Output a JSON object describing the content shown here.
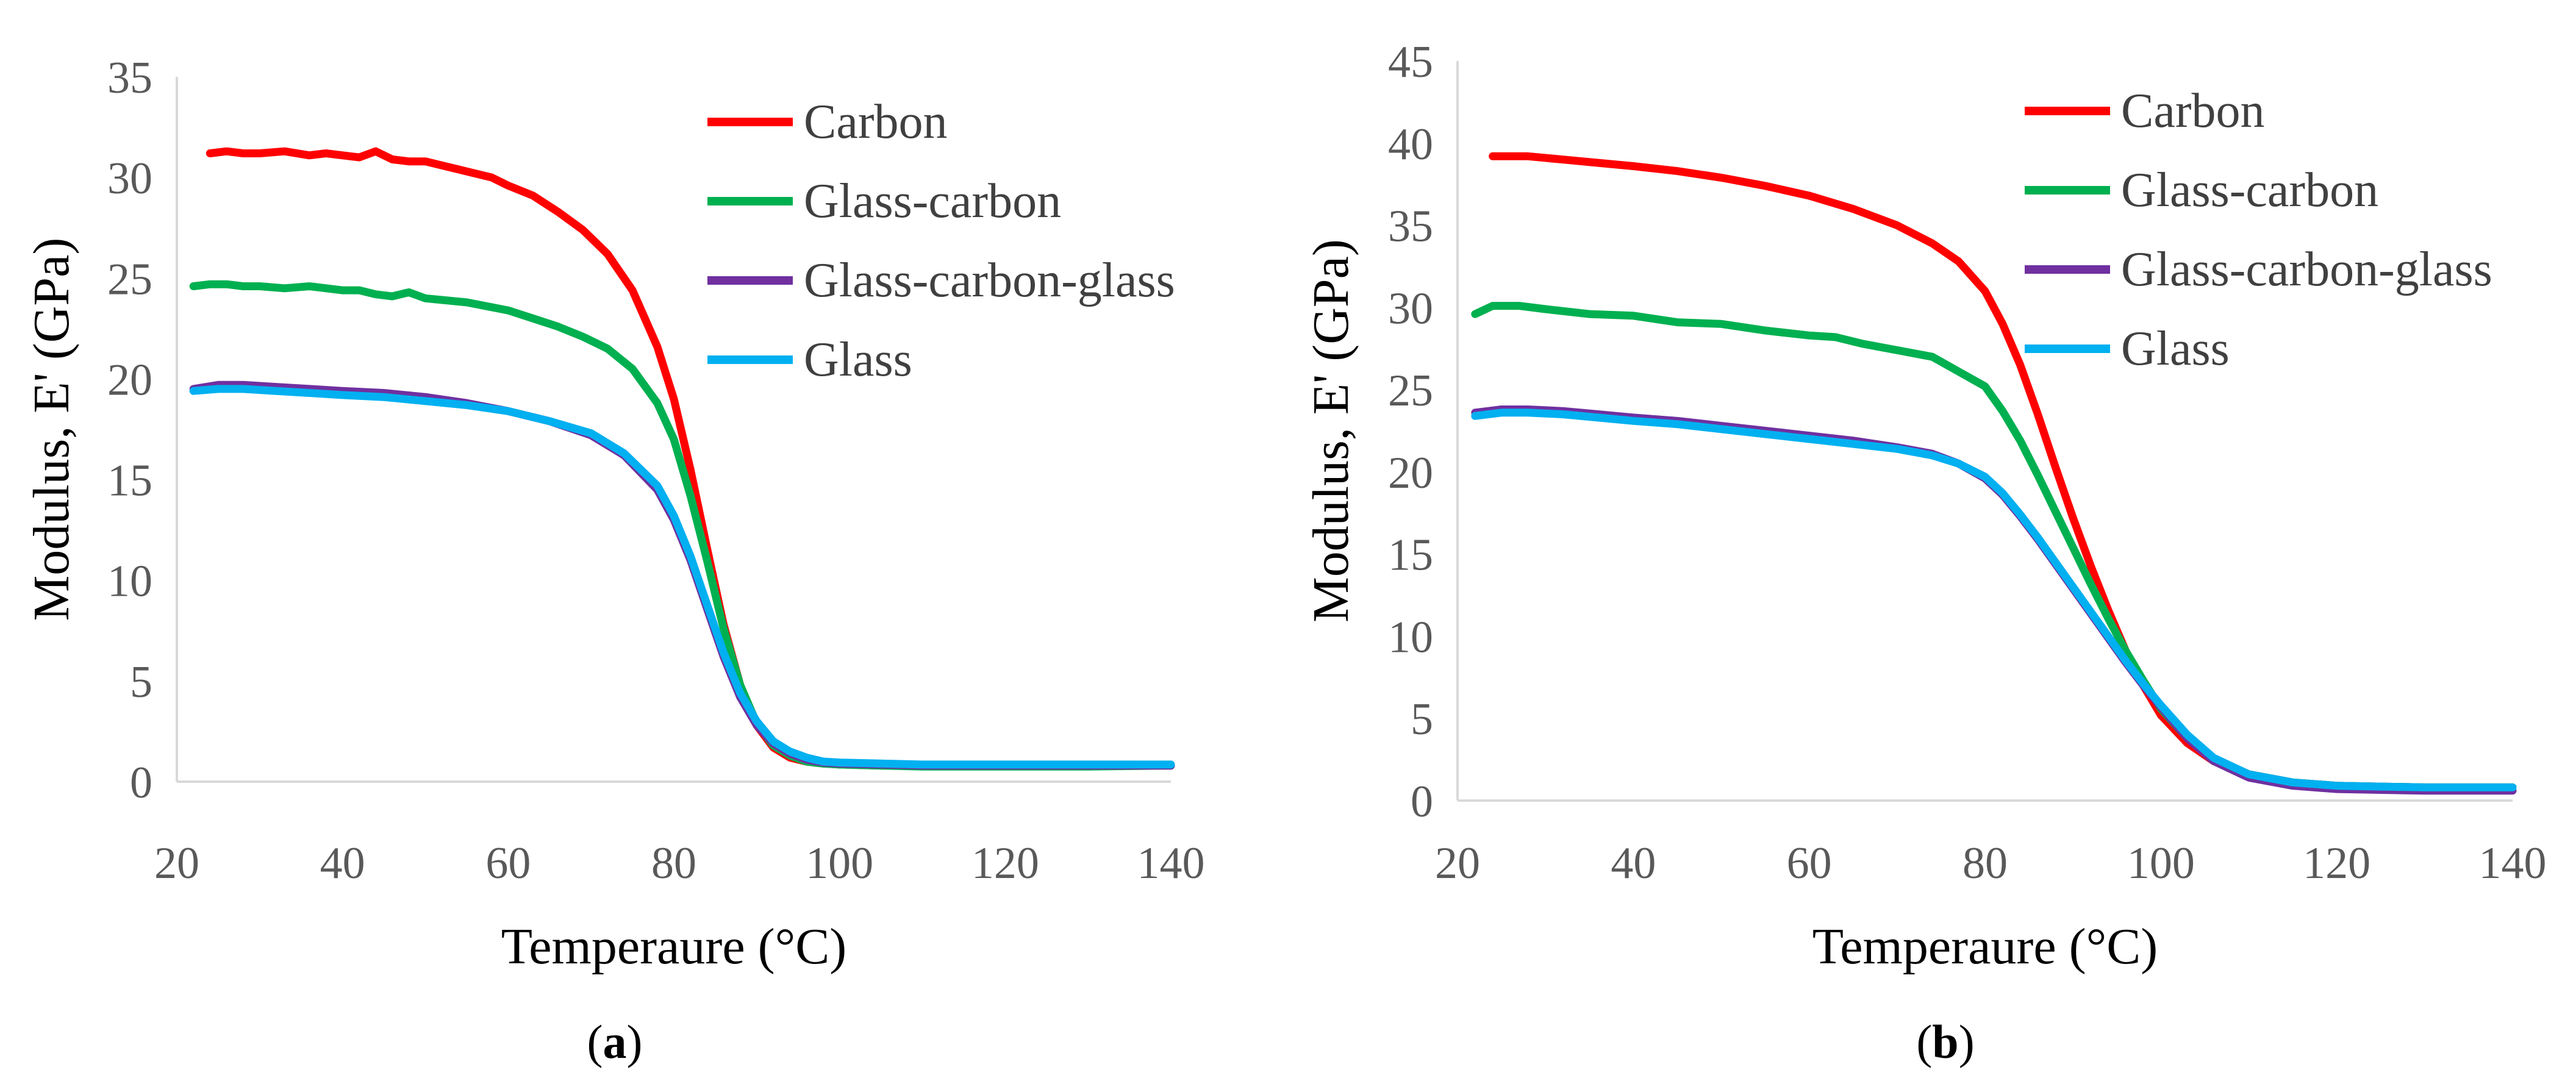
{
  "chart_data": [
    {
      "type": "line",
      "panel_label": "a",
      "xlabel": "Temperaure (°C)",
      "ylabel": "Modulus, E' (GPa)",
      "xlim": [
        20,
        140
      ],
      "ylim": [
        0,
        35
      ],
      "xticks": [
        20,
        40,
        60,
        80,
        100,
        120,
        140
      ],
      "yticks": [
        0,
        5,
        10,
        15,
        20,
        25,
        30,
        35
      ],
      "grid": false,
      "legend": "top-right",
      "series": [
        {
          "name": "Carbon",
          "color": "#ff0000",
          "x": [
            24,
            26,
            28,
            30,
            33,
            36,
            38,
            40,
            42,
            44,
            46,
            48,
            50,
            52,
            55,
            58,
            60,
            63,
            66,
            69,
            72,
            75,
            78,
            80,
            82,
            84,
            86,
            88,
            90,
            92,
            94,
            96,
            98,
            100,
            105,
            110,
            120,
            130,
            140
          ],
          "y": [
            31.2,
            31.3,
            31.2,
            31.2,
            31.3,
            31.1,
            31.2,
            31.1,
            31.0,
            31.3,
            30.9,
            30.8,
            30.8,
            30.6,
            30.3,
            30.0,
            29.6,
            29.1,
            28.3,
            27.4,
            26.2,
            24.4,
            21.6,
            19.0,
            15.5,
            11.6,
            7.8,
            4.8,
            2.8,
            1.7,
            1.2,
            1.0,
            0.9,
            0.85,
            0.8,
            0.8,
            0.8,
            0.8,
            0.8
          ]
        },
        {
          "name": "Glass-carbon",
          "color": "#00b050",
          "x": [
            22,
            24,
            26,
            28,
            30,
            33,
            36,
            38,
            40,
            42,
            44,
            46,
            48,
            50,
            55,
            60,
            63,
            66,
            69,
            72,
            75,
            78,
            80,
            82,
            84,
            86,
            88,
            90,
            92,
            94,
            96,
            98,
            100,
            105,
            110,
            120,
            130,
            140
          ],
          "y": [
            24.6,
            24.7,
            24.7,
            24.6,
            24.6,
            24.5,
            24.6,
            24.5,
            24.4,
            24.4,
            24.2,
            24.1,
            24.3,
            24.0,
            23.8,
            23.4,
            23.0,
            22.6,
            22.1,
            21.5,
            20.5,
            18.8,
            17.0,
            14.2,
            11.0,
            7.6,
            4.8,
            2.9,
            1.8,
            1.3,
            1.0,
            0.9,
            0.85,
            0.8,
            0.75,
            0.75,
            0.75,
            0.8
          ]
        },
        {
          "name": "Glass-carbon-glass",
          "color": "#7030a0",
          "x": [
            22,
            25,
            28,
            32,
            36,
            40,
            45,
            50,
            55,
            60,
            65,
            70,
            74,
            78,
            80,
            82,
            84,
            86,
            88,
            90,
            92,
            94,
            96,
            98,
            100,
            105,
            110,
            120,
            130,
            140
          ],
          "y": [
            19.5,
            19.7,
            19.7,
            19.6,
            19.5,
            19.4,
            19.3,
            19.1,
            18.8,
            18.4,
            17.9,
            17.2,
            16.2,
            14.5,
            13.0,
            11.0,
            8.6,
            6.2,
            4.2,
            2.8,
            1.9,
            1.4,
            1.1,
            0.95,
            0.9,
            0.85,
            0.8,
            0.8,
            0.8,
            0.8
          ]
        },
        {
          "name": "Glass",
          "color": "#00b0f0",
          "x": [
            22,
            25,
            28,
            32,
            36,
            40,
            45,
            50,
            55,
            60,
            65,
            70,
            74,
            78,
            80,
            82,
            84,
            86,
            88,
            90,
            92,
            94,
            96,
            98,
            100,
            105,
            110,
            120,
            130,
            140
          ],
          "y": [
            19.4,
            19.5,
            19.5,
            19.4,
            19.3,
            19.2,
            19.1,
            18.9,
            18.7,
            18.4,
            17.9,
            17.3,
            16.3,
            14.7,
            13.2,
            11.2,
            8.8,
            6.4,
            4.4,
            3.0,
            2.0,
            1.5,
            1.2,
            1.0,
            0.95,
            0.9,
            0.85,
            0.85,
            0.85,
            0.85
          ]
        }
      ]
    },
    {
      "type": "line",
      "panel_label": "b",
      "xlabel": "Temperaure (°C)",
      "ylabel": "Modulus, E' (GPa)",
      "xlim": [
        20,
        140
      ],
      "ylim": [
        0,
        45
      ],
      "xticks": [
        20,
        40,
        60,
        80,
        100,
        120,
        140
      ],
      "yticks": [
        0,
        5,
        10,
        15,
        20,
        25,
        30,
        35,
        40,
        45
      ],
      "grid": false,
      "legend": "top-right",
      "series": [
        {
          "name": "Carbon",
          "color": "#ff0000",
          "x": [
            24,
            28,
            32,
            36,
            40,
            45,
            50,
            55,
            60,
            65,
            70,
            74,
            77,
            80,
            82,
            84,
            86,
            88,
            90,
            92,
            94,
            96,
            98,
            100,
            103,
            106,
            110,
            115,
            120,
            130,
            140
          ],
          "y": [
            39.2,
            39.2,
            39.0,
            38.8,
            38.6,
            38.3,
            37.9,
            37.4,
            36.8,
            36.0,
            35.0,
            33.9,
            32.8,
            31.0,
            29.0,
            26.5,
            23.5,
            20.3,
            17.2,
            14.3,
            11.6,
            9.1,
            7.0,
            5.2,
            3.5,
            2.4,
            1.6,
            1.1,
            0.9,
            0.8,
            0.8
          ]
        },
        {
          "name": "Glass-carbon",
          "color": "#00b050",
          "x": [
            22,
            24,
            27,
            30,
            35,
            40,
            45,
            50,
            55,
            60,
            63,
            66,
            70,
            74,
            77,
            80,
            82,
            84,
            86,
            88,
            90,
            92,
            94,
            96,
            98,
            100,
            103,
            106,
            110,
            115,
            120,
            130,
            140
          ],
          "y": [
            29.6,
            30.1,
            30.1,
            29.9,
            29.6,
            29.5,
            29.1,
            29.0,
            28.6,
            28.3,
            28.2,
            27.8,
            27.4,
            27.0,
            26.1,
            25.2,
            23.7,
            21.9,
            19.8,
            17.6,
            15.4,
            13.2,
            11.1,
            9.1,
            7.3,
            5.6,
            3.8,
            2.5,
            1.6,
            1.1,
            0.9,
            0.8,
            0.8
          ]
        },
        {
          "name": "Glass-carbon-glass",
          "color": "#7030a0",
          "x": [
            22,
            25,
            28,
            32,
            36,
            40,
            45,
            50,
            55,
            60,
            65,
            70,
            74,
            77,
            80,
            82,
            84,
            86,
            88,
            90,
            92,
            94,
            96,
            98,
            100,
            103,
            106,
            110,
            115,
            120,
            130,
            140
          ],
          "y": [
            23.6,
            23.8,
            23.8,
            23.7,
            23.5,
            23.3,
            23.1,
            22.8,
            22.5,
            22.2,
            21.9,
            21.5,
            21.1,
            20.5,
            19.6,
            18.6,
            17.3,
            15.9,
            14.4,
            12.9,
            11.4,
            9.9,
            8.4,
            7.0,
            5.7,
            3.8,
            2.4,
            1.4,
            0.9,
            0.7,
            0.6,
            0.6
          ]
        },
        {
          "name": "Glass",
          "color": "#00b0f0",
          "x": [
            22,
            25,
            28,
            32,
            36,
            40,
            45,
            50,
            55,
            60,
            65,
            70,
            74,
            77,
            80,
            82,
            84,
            86,
            88,
            90,
            92,
            94,
            96,
            98,
            100,
            103,
            106,
            110,
            115,
            120,
            130,
            140
          ],
          "y": [
            23.4,
            23.6,
            23.6,
            23.5,
            23.3,
            23.1,
            22.9,
            22.6,
            22.3,
            22.0,
            21.7,
            21.4,
            21.0,
            20.5,
            19.7,
            18.7,
            17.4,
            16.0,
            14.5,
            13.0,
            11.5,
            10.0,
            8.5,
            7.1,
            5.8,
            4.0,
            2.6,
            1.6,
            1.1,
            0.9,
            0.8,
            0.8
          ]
        }
      ]
    }
  ]
}
